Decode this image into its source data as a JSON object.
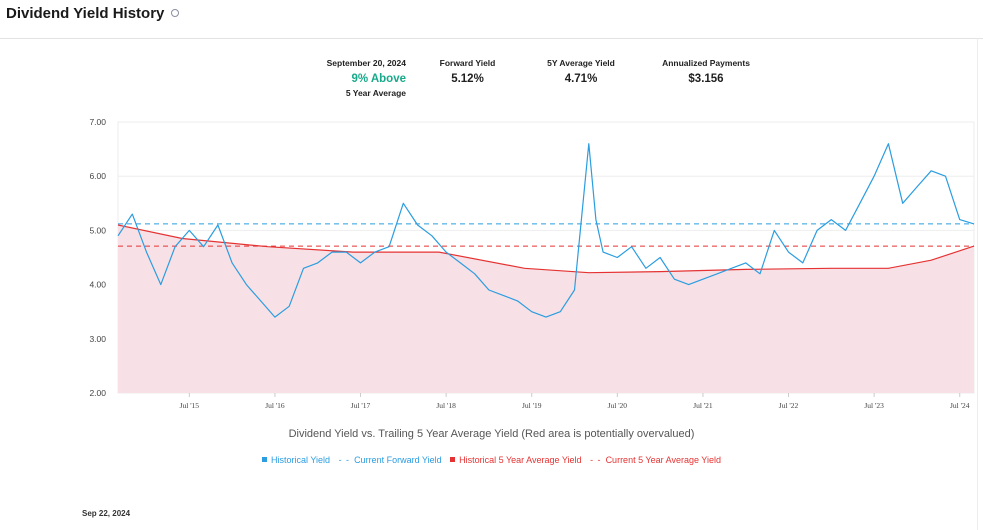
{
  "header": {
    "title": "Dividend Yield History",
    "info_icon": "circle-info-icon"
  },
  "stats": {
    "date": "September 20, 2024",
    "relative": "9% Above",
    "relative_sub": "5 Year Average",
    "forward_label": "Forward Yield",
    "forward_value": "5.12%",
    "avg_label": "5Y Average Yield",
    "avg_value": "4.71%",
    "payments_label": "Annualized Payments",
    "payments_value": "$3.156"
  },
  "colors": {
    "historical": "#2b9de0",
    "average": "#e53333",
    "overvalued_fill": "#f8e1e6",
    "accent_green": "#17a98a"
  },
  "chart_data": {
    "type": "line",
    "title": "Dividend Yield vs. Trailing 5 Year Average Yield (Red area is potentially overvalued)",
    "ylim": [
      2.0,
      7.0
    ],
    "yticks": [
      "2.00",
      "3.00",
      "4.00",
      "5.00",
      "6.00",
      "7.00"
    ],
    "xlim": [
      "2014-09",
      "2024-09"
    ],
    "xticks": [
      "Jul '15",
      "Jul '16",
      "Jul '17",
      "Jul '18",
      "Jul '19",
      "Jul '20",
      "Jul '21",
      "Jul '22",
      "Jul '23",
      "Jul '24"
    ],
    "grid": true,
    "legend_position": "bottom",
    "legend": [
      "Historical Yield",
      "Current Forward Yield",
      "Historical 5 Year Average Yield",
      "Current 5 Year Average Yield"
    ],
    "current_forward_yield": 5.12,
    "current_5yr_average": 4.71,
    "series": [
      {
        "name": "Historical Yield",
        "x": [
          "2014-09",
          "2014-11",
          "2015-01",
          "2015-03",
          "2015-05",
          "2015-07",
          "2015-09",
          "2015-11",
          "2016-01",
          "2016-03",
          "2016-05",
          "2016-07",
          "2016-09",
          "2016-11",
          "2017-01",
          "2017-03",
          "2017-05",
          "2017-07",
          "2017-09",
          "2017-11",
          "2018-01",
          "2018-03",
          "2018-05",
          "2018-07",
          "2018-09",
          "2018-11",
          "2019-01",
          "2019-03",
          "2019-05",
          "2019-07",
          "2019-09",
          "2019-11",
          "2020-01",
          "2020-03",
          "2020-04",
          "2020-05",
          "2020-07",
          "2020-09",
          "2020-11",
          "2021-01",
          "2021-03",
          "2021-05",
          "2021-07",
          "2021-09",
          "2021-11",
          "2022-01",
          "2022-03",
          "2022-05",
          "2022-07",
          "2022-09",
          "2022-11",
          "2023-01",
          "2023-03",
          "2023-05",
          "2023-07",
          "2023-09",
          "2023-11",
          "2024-01",
          "2024-03",
          "2024-05",
          "2024-07",
          "2024-09"
        ],
        "values": [
          4.9,
          5.3,
          4.6,
          4.0,
          4.7,
          5.0,
          4.7,
          5.1,
          4.4,
          4.0,
          3.7,
          3.4,
          3.6,
          4.3,
          4.4,
          4.6,
          4.6,
          4.4,
          4.6,
          4.7,
          5.5,
          5.1,
          4.9,
          4.6,
          4.4,
          4.2,
          3.9,
          3.8,
          3.7,
          3.5,
          3.4,
          3.5,
          3.9,
          6.6,
          5.2,
          4.6,
          4.5,
          4.7,
          4.3,
          4.5,
          4.1,
          4.0,
          4.1,
          4.2,
          4.3,
          4.4,
          4.2,
          5.0,
          4.6,
          4.4,
          5.0,
          5.2,
          5.0,
          5.5,
          6.0,
          6.6,
          5.5,
          5.8,
          6.1,
          6.0,
          5.2,
          5.12
        ]
      },
      {
        "name": "Historical 5 Year Average Yield",
        "x": [
          "2014-09",
          "2015-06",
          "2016-06",
          "2017-06",
          "2018-06",
          "2019-06",
          "2020-03",
          "2021-01",
          "2022-01",
          "2023-01",
          "2023-09",
          "2024-03",
          "2024-09"
        ],
        "values": [
          5.1,
          4.85,
          4.7,
          4.6,
          4.6,
          4.3,
          4.22,
          4.24,
          4.28,
          4.3,
          4.3,
          4.45,
          4.71
        ]
      }
    ]
  },
  "legend_labels": {
    "historical": "Historical Yield",
    "forward": "Current Forward Yield",
    "average": "Historical 5 Year Average Yield",
    "current_avg": "Current 5 Year Average Yield"
  },
  "footer": {
    "date": "Sep 22, 2024"
  }
}
